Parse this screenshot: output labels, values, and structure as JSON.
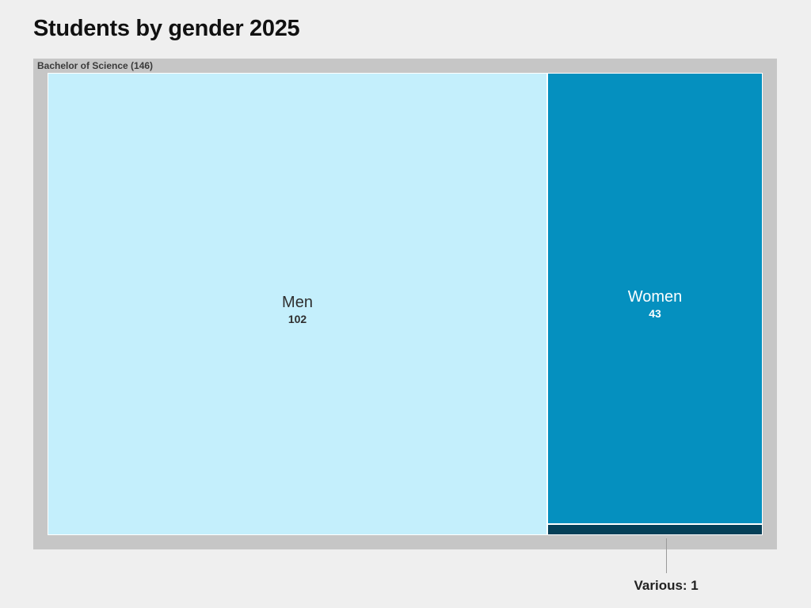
{
  "title": "Students by gender 2025",
  "chart_data": {
    "type": "treemap",
    "title": "Students by gender 2025",
    "group": {
      "label": "Bachelor of Science (146)",
      "name": "Bachelor of Science",
      "total": 146
    },
    "items": [
      {
        "name": "Men",
        "value": 102,
        "value_label": "102",
        "color": "#c4effc",
        "text_color": "#2f2f2f"
      },
      {
        "name": "Women",
        "value": 43,
        "value_label": "43",
        "color": "#0590bf",
        "text_color": "#ffffff"
      },
      {
        "name": "Various",
        "value": 1,
        "value_label": "1",
        "color": "#054058",
        "text_color": "#ffffff",
        "callout": "Various: 1"
      }
    ]
  }
}
